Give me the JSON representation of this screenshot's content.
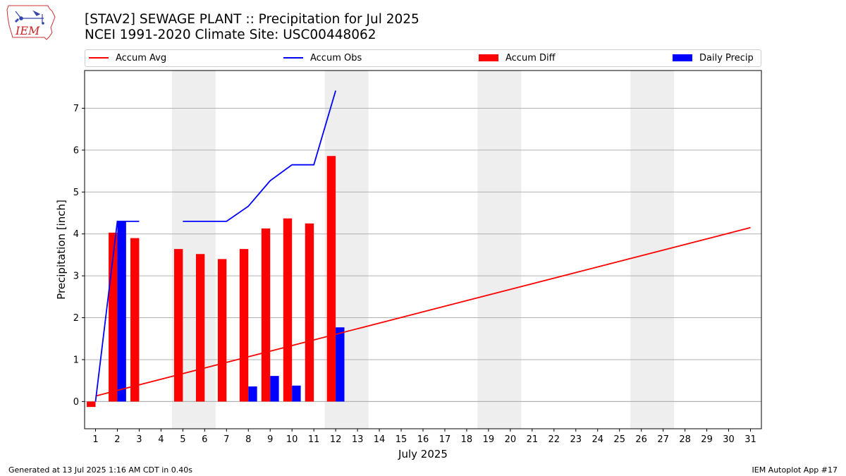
{
  "logo": {
    "text": "IEM",
    "icon": "iowa-state-outline-icon"
  },
  "header": {
    "title": "[STAV2] SEWAGE PLANT :: Precipitation for Jul 2025",
    "subtitle": "NCEI 1991-2020 Climate Site: USC00448062"
  },
  "legend": {
    "items": [
      {
        "label": "Accum Avg",
        "kind": "line",
        "color": "#ff0000"
      },
      {
        "label": "Accum Obs",
        "kind": "line",
        "color": "#0000ff"
      },
      {
        "label": "Accum Diff",
        "kind": "patch",
        "color": "#ff0000"
      },
      {
        "label": "Daily Precip",
        "kind": "patch",
        "color": "#0000ff"
      }
    ]
  },
  "footer": {
    "left": "Generated at 13 Jul 2025 1:16 AM CDT in 0.40s",
    "right": "IEM Autoplot App #17"
  },
  "chart_data": {
    "type": "bar",
    "xlabel": "July 2025",
    "ylabel": "Precipitation [inch]",
    "x": [
      1,
      2,
      3,
      4,
      5,
      6,
      7,
      8,
      9,
      10,
      11,
      12,
      13,
      14,
      15,
      16,
      17,
      18,
      19,
      20,
      21,
      22,
      23,
      24,
      25,
      26,
      27,
      28,
      29,
      30,
      31
    ],
    "xlim": [
      0.5,
      31.5
    ],
    "ylim": [
      -0.65,
      7.9
    ],
    "yticks": [
      0,
      1,
      2,
      3,
      4,
      5,
      6,
      7
    ],
    "grid": "y",
    "legend_position": "top",
    "weekend_shading": [
      [
        4.5,
        6.5
      ],
      [
        11.5,
        13.5
      ],
      [
        18.5,
        20.5
      ],
      [
        25.5,
        27.5
      ]
    ],
    "shade_color": "#eeeeee",
    "series": [
      {
        "name": "Accum Avg",
        "kind": "line",
        "color": "#ff0000",
        "x": [
          1,
          31
        ],
        "values": [
          0.13,
          4.15
        ]
      },
      {
        "name": "Accum Obs",
        "kind": "line",
        "color": "#0000ff",
        "segments": [
          {
            "x": [
              1,
              2,
              3
            ],
            "values": [
              0.0,
              4.3,
              4.3
            ]
          },
          {
            "x": [
              5,
              6,
              7,
              8,
              9,
              10,
              11,
              12
            ],
            "values": [
              4.3,
              4.3,
              4.3,
              4.66,
              5.27,
              5.65,
              5.65,
              7.42
            ]
          }
        ]
      },
      {
        "name": "Accum Diff",
        "kind": "bar",
        "color": "#ff0000",
        "x": [
          1,
          2,
          3,
          5,
          6,
          7,
          8,
          9,
          10,
          11,
          12
        ],
        "values": [
          -0.13,
          4.03,
          3.9,
          3.64,
          3.52,
          3.4,
          3.64,
          4.13,
          4.37,
          4.25,
          5.86
        ]
      },
      {
        "name": "Daily Precip",
        "kind": "bar",
        "color": "#0000ff",
        "x": [
          2,
          8,
          9,
          10,
          12
        ],
        "values": [
          4.3,
          0.36,
          0.61,
          0.38,
          1.77
        ]
      }
    ]
  }
}
